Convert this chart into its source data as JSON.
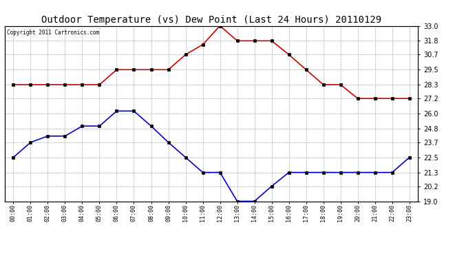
{
  "title": "Outdoor Temperature (vs) Dew Point (Last 24 Hours) 20110129",
  "copyright_text": "Copyright 2011 Cartronics.com",
  "hours": [
    "00:00",
    "01:00",
    "02:00",
    "03:00",
    "04:00",
    "05:00",
    "06:00",
    "07:00",
    "08:00",
    "09:00",
    "10:00",
    "11:00",
    "12:00",
    "13:00",
    "14:00",
    "15:00",
    "16:00",
    "17:00",
    "18:00",
    "19:00",
    "20:00",
    "21:00",
    "22:00",
    "23:00"
  ],
  "temp_red": [
    28.3,
    28.3,
    28.3,
    28.3,
    28.3,
    28.3,
    29.5,
    29.5,
    29.5,
    29.5,
    30.7,
    31.5,
    33.0,
    31.8,
    31.8,
    31.8,
    30.7,
    29.5,
    28.3,
    28.3,
    27.2,
    27.2,
    27.2,
    27.2
  ],
  "dew_blue": [
    22.5,
    23.7,
    24.2,
    24.2,
    25.0,
    25.0,
    26.2,
    26.2,
    25.0,
    23.7,
    22.5,
    21.3,
    21.3,
    19.0,
    19.0,
    20.2,
    21.3,
    21.3,
    21.3,
    21.3,
    21.3,
    21.3,
    21.3,
    22.5
  ],
  "ylim": [
    19.0,
    33.0
  ],
  "yticks": [
    19.0,
    20.2,
    21.3,
    22.5,
    23.7,
    24.8,
    26.0,
    27.2,
    28.3,
    29.5,
    30.7,
    31.8,
    33.0
  ],
  "red_color": "#cc0000",
  "blue_color": "#0000cc",
  "bg_color": "#ffffff",
  "grid_color": "#aaaaaa",
  "title_fontsize": 10,
  "marker": "s",
  "marker_size": 3
}
